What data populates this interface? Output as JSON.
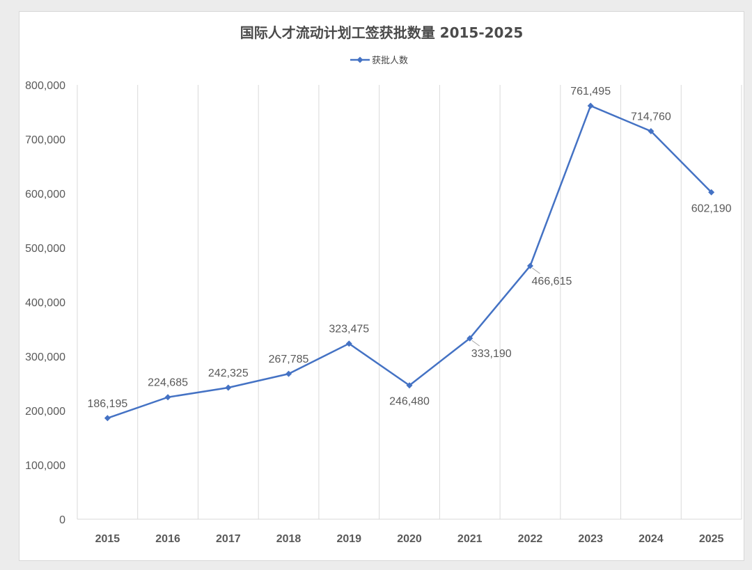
{
  "colors": {
    "series": "#4472C4",
    "grid": "#d9d9d9",
    "text": "#595959"
  },
  "chart_data": {
    "type": "line",
    "title": "国际人才流动计划工签获批数量 2015-2025",
    "xlabel": "",
    "ylabel": "",
    "categories": [
      "2015",
      "2016",
      "2017",
      "2018",
      "2019",
      "2020",
      "2021",
      "2022",
      "2023",
      "2024",
      "2025"
    ],
    "series": [
      {
        "name": "获批人数",
        "values": [
          186195,
          224685,
          242325,
          267785,
          323475,
          246480,
          333190,
          466615,
          761495,
          714760,
          602190
        ],
        "labels": [
          "186,195",
          "224,685",
          "242,325",
          "267,785",
          "323,475",
          "246,480",
          "333,190",
          "466,615",
          "761,495",
          "714,760",
          "602,190"
        ]
      }
    ],
    "ylim": [
      0,
      800000
    ],
    "yticks": [
      0,
      100000,
      200000,
      300000,
      400000,
      500000,
      600000,
      700000,
      800000
    ],
    "ytick_labels": [
      "0",
      "100,000",
      "200,000",
      "300,000",
      "400,000",
      "500,000",
      "600,000",
      "700,000",
      "800,000"
    ],
    "grid": "vertical",
    "legend": "top-center",
    "marker": "diamond"
  }
}
